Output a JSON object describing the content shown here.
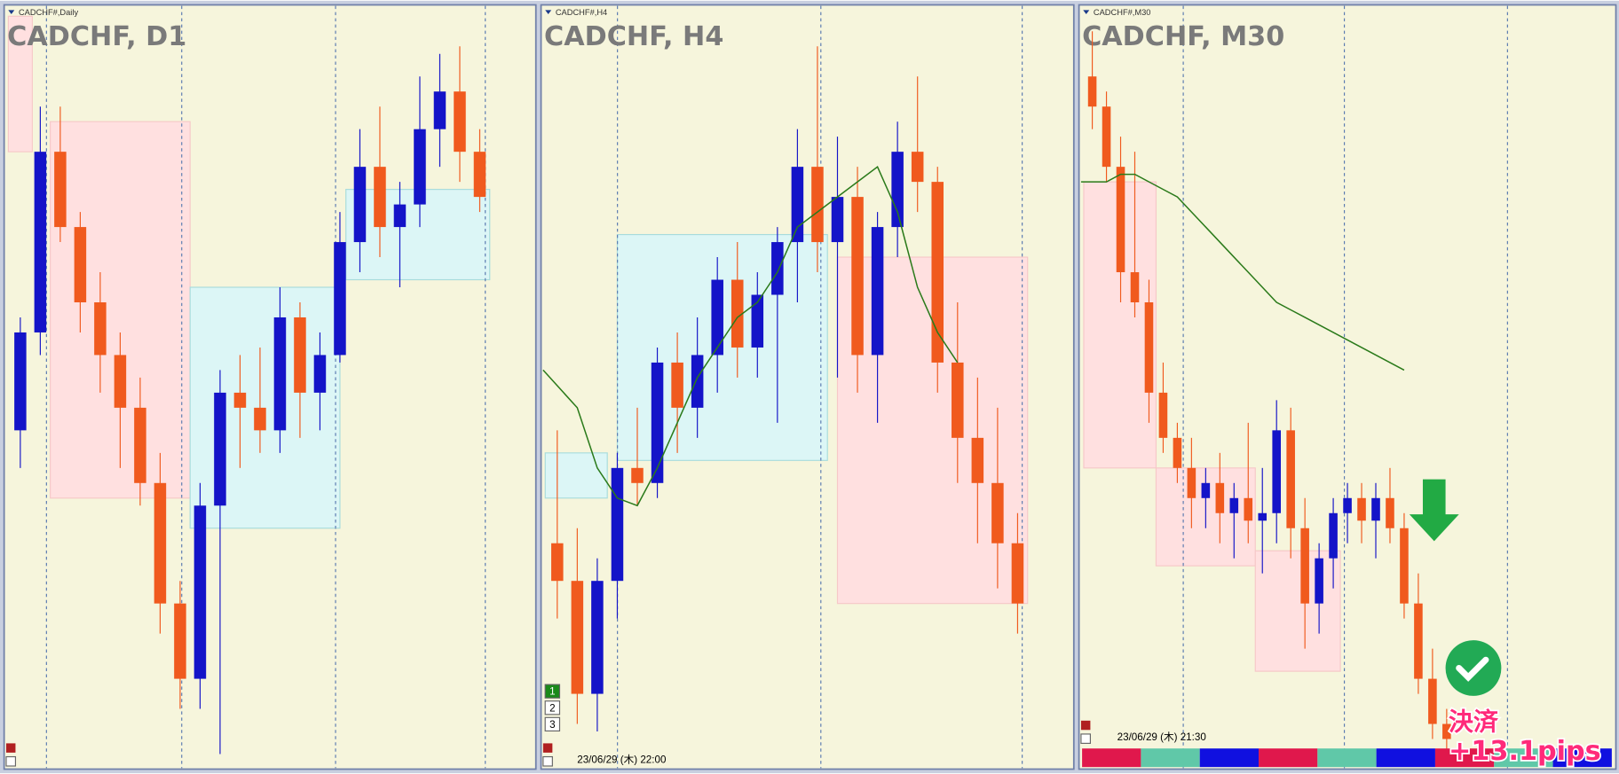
{
  "chart_data": [
    {
      "type": "candlestick",
      "header": "CADCHF#,Daily",
      "title": "CADCHF, D1",
      "ylim": [
        0,
        100
      ],
      "up_color": "#1414c8",
      "down_color": "#f05a1e",
      "candles": [
        [
          45,
          60,
          40,
          58
        ],
        [
          58,
          88,
          55,
          82
        ],
        [
          82,
          88,
          70,
          72
        ],
        [
          72,
          74,
          58,
          62
        ],
        [
          62,
          66,
          50,
          55
        ],
        [
          55,
          58,
          40,
          48
        ],
        [
          48,
          52,
          35,
          38
        ],
        [
          38,
          42,
          18,
          22
        ],
        [
          22,
          25,
          8,
          12
        ],
        [
          12,
          38,
          8,
          35
        ],
        [
          35,
          53,
          2,
          50
        ],
        [
          50,
          55,
          40,
          48
        ],
        [
          48,
          56,
          42,
          45
        ],
        [
          45,
          64,
          42,
          60
        ],
        [
          60,
          62,
          44,
          50
        ],
        [
          50,
          58,
          45,
          55
        ],
        [
          55,
          74,
          54,
          70
        ],
        [
          70,
          85,
          66,
          80
        ],
        [
          80,
          88,
          68,
          72
        ],
        [
          72,
          78,
          64,
          75
        ],
        [
          75,
          92,
          72,
          85
        ],
        [
          85,
          95,
          80,
          90
        ],
        [
          90,
          96,
          78,
          82
        ],
        [
          82,
          85,
          74,
          76
        ]
      ],
      "zones": [
        {
          "from": -0.6,
          "to": 0.6,
          "low": 82,
          "high": 100,
          "color": "#ffe0e0"
        },
        {
          "from": 1.5,
          "to": 8.5,
          "low": 36,
          "high": 86,
          "color": "#ffe0e0"
        },
        {
          "from": 8.5,
          "to": 16,
          "low": 32,
          "high": 64,
          "color": "#dcf6f6"
        },
        {
          "from": 16.3,
          "to": 23.5,
          "low": 65,
          "high": 77,
          "color": "#dcf6f6"
        }
      ]
    },
    {
      "type": "candlestick",
      "header": "CADCHF#,H4",
      "title": "CADCHF, H4",
      "ylim": [
        0,
        100
      ],
      "up_color": "#1414c8",
      "down_color": "#f05a1e",
      "timestamp": "23/06/29 (木) 22:00",
      "candles": [
        [
          30,
          45,
          20,
          25
        ],
        [
          25,
          32,
          6,
          10
        ],
        [
          10,
          28,
          5,
          25
        ],
        [
          25,
          42,
          20,
          40
        ],
        [
          40,
          48,
          35,
          38
        ],
        [
          38,
          56,
          36,
          54
        ],
        [
          54,
          58,
          42,
          48
        ],
        [
          48,
          60,
          44,
          55
        ],
        [
          55,
          68,
          50,
          65
        ],
        [
          65,
          70,
          52,
          56
        ],
        [
          56,
          66,
          52,
          63
        ],
        [
          63,
          72,
          46,
          70
        ],
        [
          70,
          85,
          62,
          80
        ],
        [
          80,
          96,
          66,
          70
        ],
        [
          70,
          84,
          52,
          76
        ],
        [
          76,
          80,
          50,
          55
        ],
        [
          55,
          74,
          46,
          72
        ],
        [
          72,
          86,
          68,
          82
        ],
        [
          82,
          92,
          74,
          78
        ],
        [
          78,
          80,
          50,
          54
        ],
        [
          54,
          62,
          38,
          44
        ],
        [
          44,
          52,
          30,
          38
        ],
        [
          38,
          48,
          24,
          30
        ],
        [
          30,
          34,
          18,
          22
        ]
      ],
      "ma": [
        53,
        48,
        40,
        36,
        35,
        40,
        46,
        52,
        56,
        60,
        62,
        66,
        72,
        74,
        76,
        78,
        80,
        74,
        64,
        58,
        54,
        null,
        null,
        null
      ],
      "ma_color": "#2a7a1a",
      "zones": [
        {
          "from": -0.6,
          "to": 2.5,
          "low": 36,
          "high": 42,
          "color": "#dcf6f6"
        },
        {
          "from": 3,
          "to": 13.5,
          "low": 41,
          "high": 71,
          "color": "#dcf6f6"
        },
        {
          "from": 14,
          "to": 23.5,
          "low": 22,
          "high": 68,
          "color": "#ffe0e0"
        }
      ]
    },
    {
      "type": "candlestick",
      "header": "CADCHF#,M30",
      "title": "CADCHF, M30",
      "ylim": [
        0,
        100
      ],
      "up_color": "#1414c8",
      "down_color": "#f05a1e",
      "timestamp": "23/06/29 (木) 21:30",
      "candles": [
        [
          92,
          98,
          85,
          88
        ],
        [
          88,
          90,
          78,
          80
        ],
        [
          80,
          84,
          62,
          66
        ],
        [
          66,
          82,
          60,
          62
        ],
        [
          62,
          65,
          46,
          50
        ],
        [
          50,
          54,
          42,
          44
        ],
        [
          44,
          46,
          38,
          40
        ],
        [
          40,
          44,
          32,
          36
        ],
        [
          36,
          40,
          32,
          38
        ],
        [
          38,
          42,
          30,
          34
        ],
        [
          34,
          38,
          28,
          36
        ],
        [
          36,
          46,
          30,
          33
        ],
        [
          33,
          40,
          26,
          34
        ],
        [
          34,
          49,
          30,
          45
        ],
        [
          45,
          48,
          28,
          32
        ],
        [
          32,
          36,
          16,
          22
        ],
        [
          22,
          30,
          18,
          28
        ],
        [
          28,
          36,
          24,
          34
        ],
        [
          34,
          38,
          30,
          36
        ],
        [
          36,
          38,
          30,
          33
        ],
        [
          33,
          38,
          28,
          36
        ],
        [
          36,
          40,
          30,
          32
        ],
        [
          32,
          34,
          20,
          22
        ],
        [
          22,
          26,
          10,
          12
        ],
        [
          12,
          16,
          4,
          6
        ],
        [
          6,
          8,
          2,
          4
        ]
      ],
      "ma": [
        78,
        78,
        79,
        79,
        78,
        77,
        76,
        74,
        72,
        70,
        68,
        66,
        64,
        62,
        61,
        60,
        59,
        58,
        57,
        56,
        55,
        54,
        53,
        null,
        null,
        null
      ],
      "ma_color": "#2a7a1a",
      "zones": [
        {
          "from": -0.6,
          "to": 4.5,
          "low": 40,
          "high": 78,
          "color": "#ffe0e0"
        },
        {
          "from": 4.5,
          "to": 11.5,
          "low": 27,
          "high": 40,
          "color": "#ffe0e0"
        },
        {
          "from": 11.5,
          "to": 17.5,
          "low": 13,
          "high": 29,
          "color": "#ffe0e0"
        }
      ]
    }
  ],
  "ui": {
    "buttons": [
      "1",
      "2",
      "3"
    ],
    "exit_label": "決済",
    "profit_label": "+13.1pips"
  }
}
